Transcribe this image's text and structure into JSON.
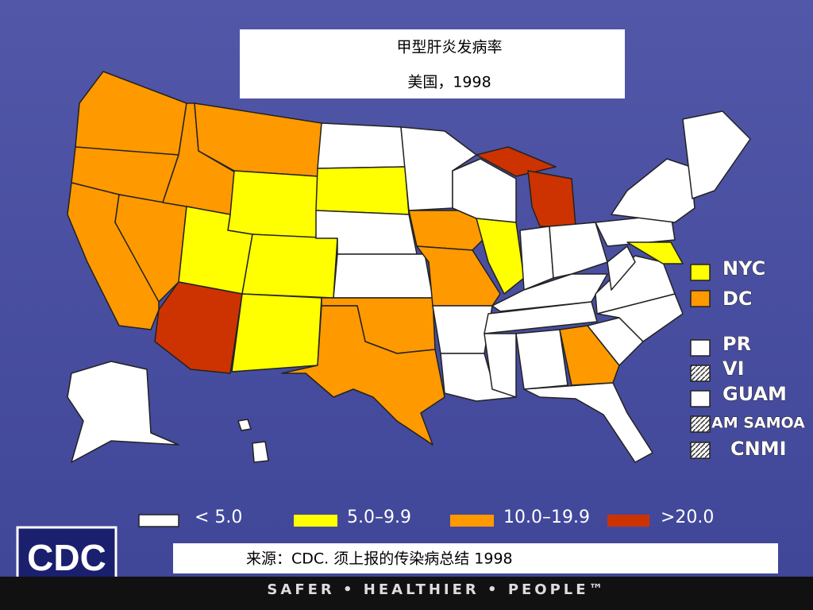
{
  "title": {
    "line1": "甲型肝炎发病率",
    "line2": "美国，1998"
  },
  "territories": [
    {
      "label": "NYC"
    },
    {
      "label": "DC"
    },
    {
      "label": "PR"
    },
    {
      "label": "VI"
    },
    {
      "label": "GUAM"
    },
    {
      "label": "AM SAMOA"
    },
    {
      "label": "CNMI"
    }
  ],
  "legend": [
    {
      "label": "< 5.0"
    },
    {
      "label": "5.0–9.9"
    },
    {
      "label": "10.0–19.9"
    },
    {
      "label": ">20.0"
    }
  ],
  "source": "来源：CDC. 须上报的传染病总结 1998",
  "logo": "CDC",
  "slogan": "SAFER • HEALTHIER • PEOPLE™"
}
